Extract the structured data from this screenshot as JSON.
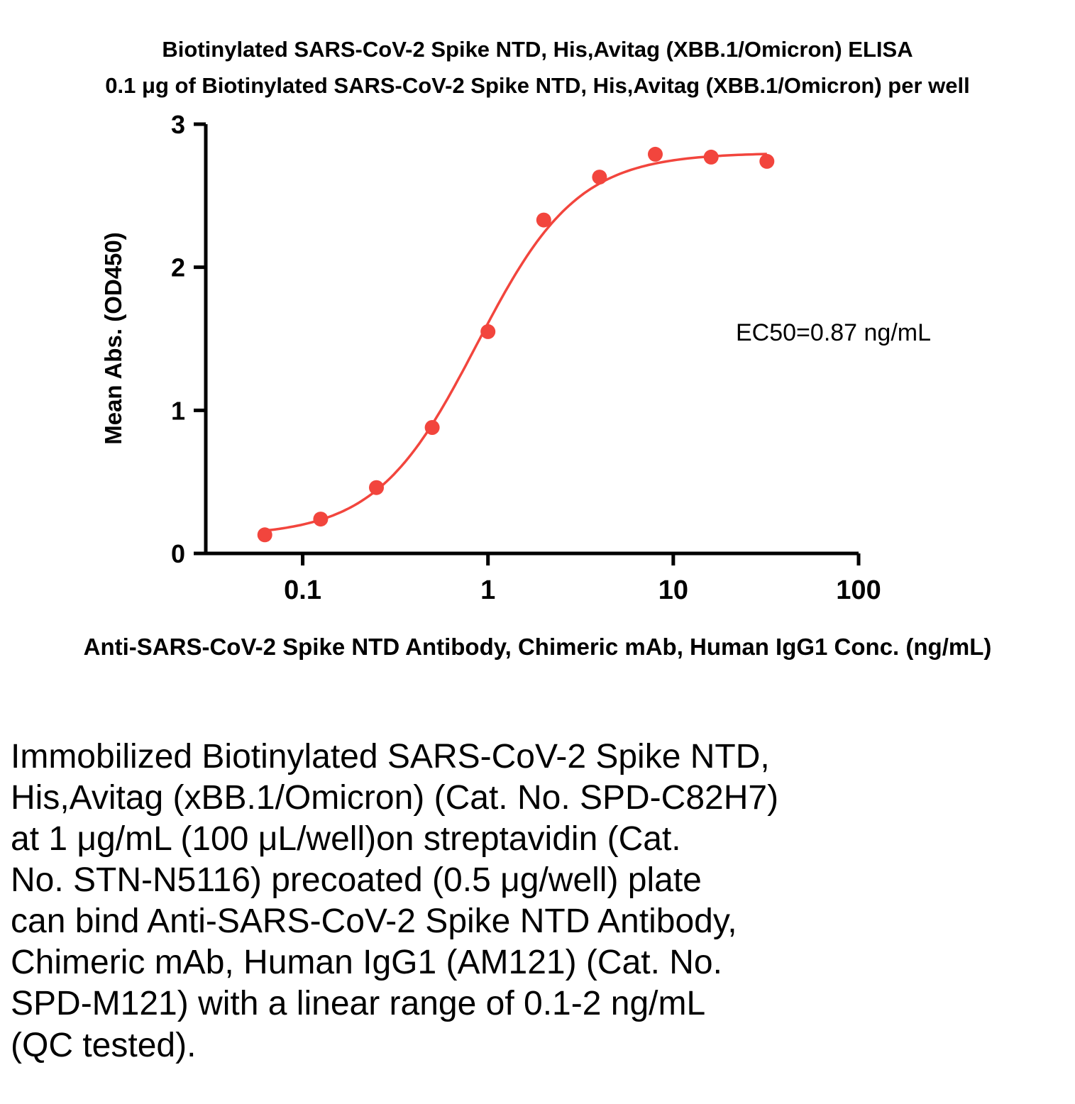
{
  "chart_data": {
    "type": "scatter",
    "title_line1": "Biotinylated SARS-CoV-2 Spike NTD, His,Avitag (XBB.1/Omicron) ELISA",
    "title_line2": "0.1 μg of Biotinylated SARS-CoV-2 Spike NTD, His,Avitag (XBB.1/Omicron) per well",
    "xlabel": "Anti-SARS-CoV-2 Spike NTD Antibody, Chimeric mAb, Human IgG1 Conc. (ng/mL)",
    "ylabel": "Mean Abs. (OD450)",
    "annotation": "EC50=0.87 ng/mL",
    "x_scale": "log",
    "xlim": [
      0.03,
      100
    ],
    "ylim": [
      0,
      3
    ],
    "x_ticks": [
      0.1,
      1,
      10,
      100
    ],
    "x_tick_labels": [
      "0.1",
      "1",
      "10",
      "100"
    ],
    "y_ticks": [
      0,
      1,
      2,
      3
    ],
    "y_tick_labels": [
      "0",
      "1",
      "2",
      "3"
    ],
    "points": {
      "x": [
        0.0625,
        0.125,
        0.25,
        0.5,
        1,
        2,
        4,
        8,
        16,
        32
      ],
      "y": [
        0.13,
        0.24,
        0.46,
        0.88,
        1.55,
        2.33,
        2.63,
        2.79,
        2.77,
        2.74
      ]
    },
    "fit": {
      "bottom": 0.12,
      "top": 2.8,
      "ec50": 0.87,
      "hill": 1.6
    },
    "color": "#F2453D",
    "axis_color": "#000000",
    "grid": false,
    "legend": "none"
  },
  "caption": "Immobilized Biotinylated SARS-CoV-2 Spike NTD,\nHis,Avitag (xBB.1/Omicron) (Cat. No. SPD-C82H7)\nat 1 μg/mL (100 μL/well)on streptavidin (Cat.\nNo. STN-N5116) precoated (0.5 μg/well) plate\ncan bind Anti-SARS-CoV-2 Spike NTD Antibody,\nChimeric mAb, Human IgG1 (AM121) (Cat. No.\nSPD-M121) with a linear range of 0.1-2 ng/mL\n(QC tested)."
}
